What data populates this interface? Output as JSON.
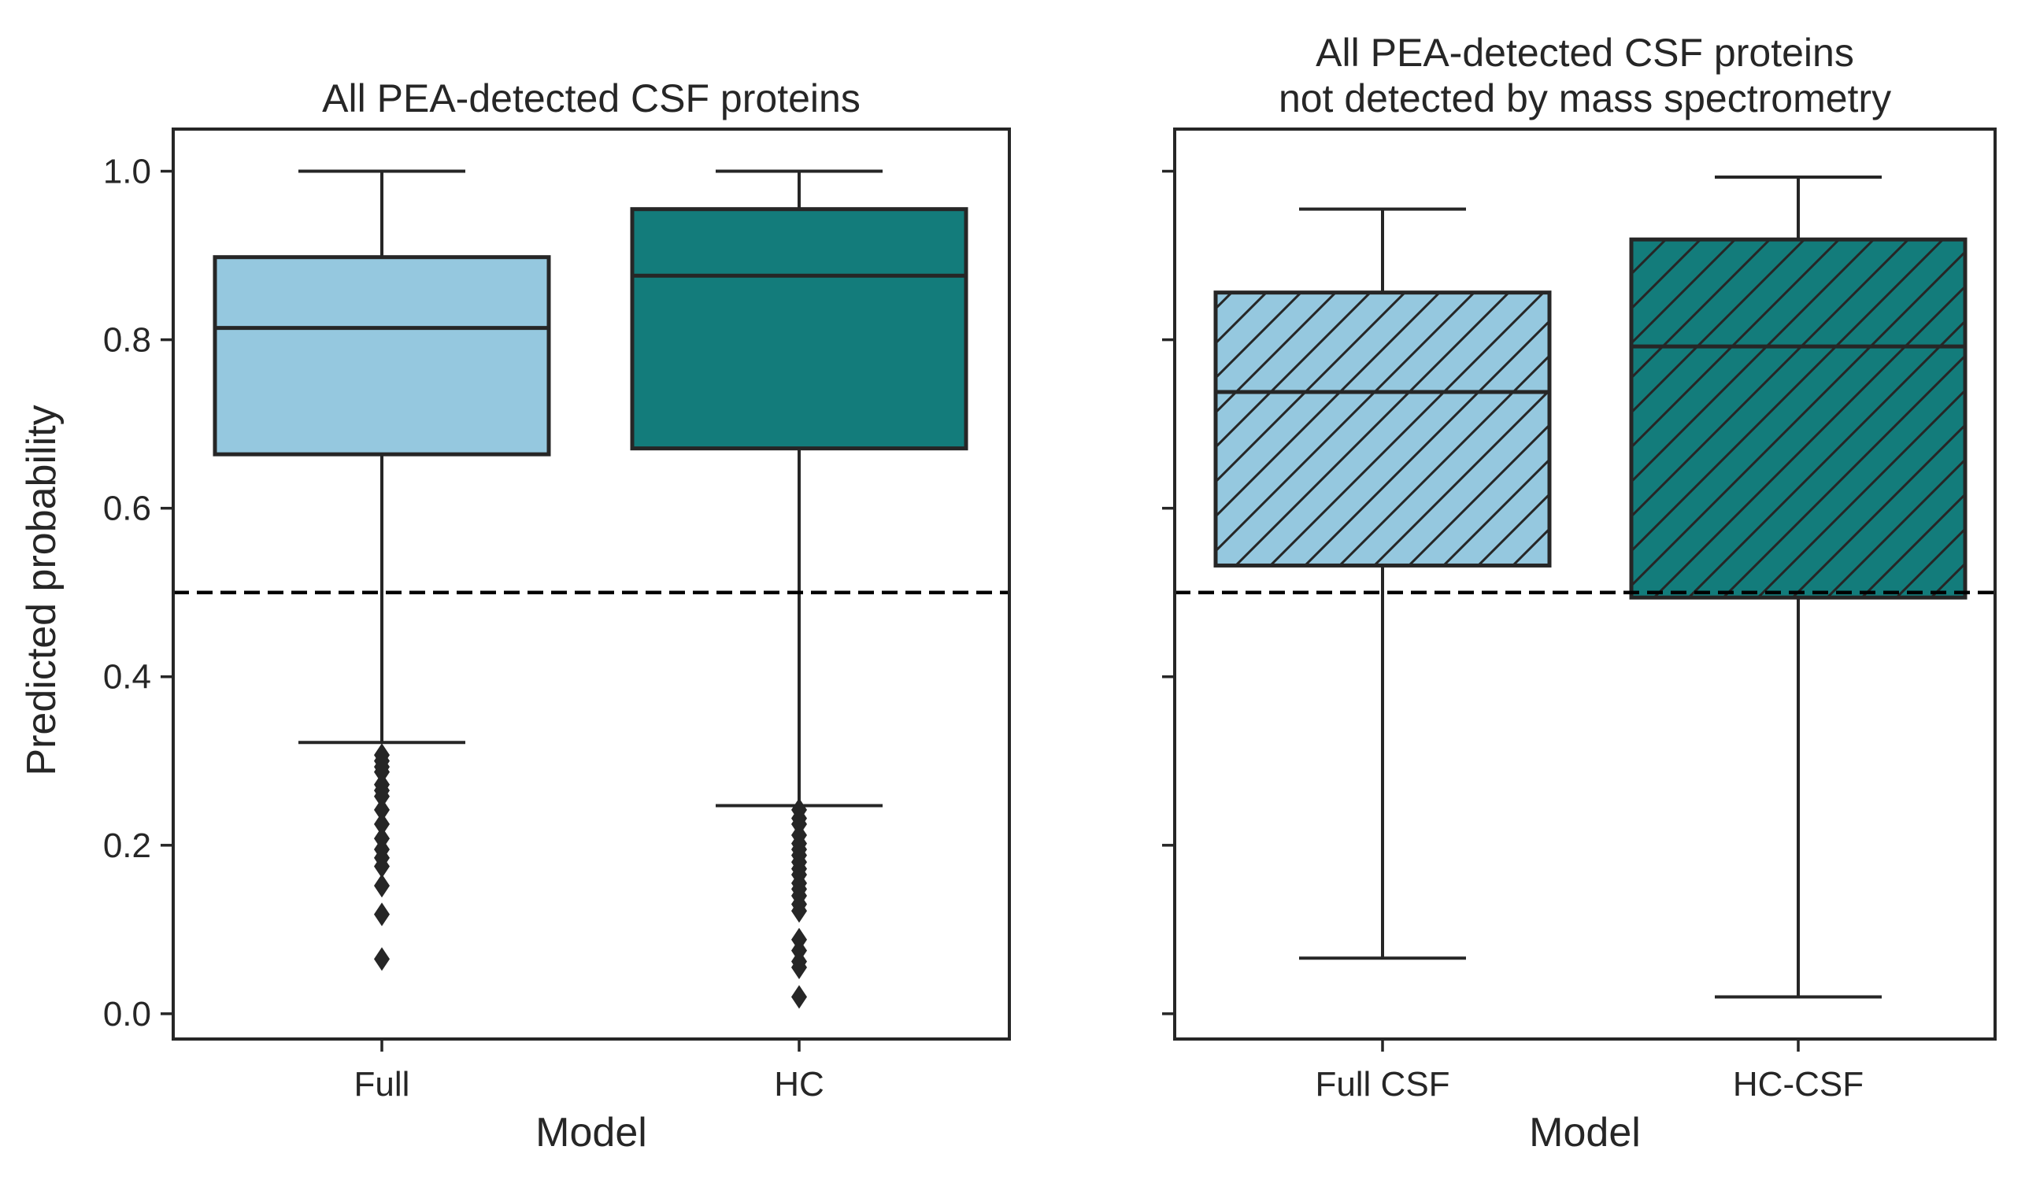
{
  "ylabel": "Predicted probability",
  "colors": {
    "light_blue": "#95c8df",
    "teal": "#137c7b",
    "edge": "#262626",
    "threshold": "#000000"
  },
  "chart_data": [
    {
      "type": "box",
      "title": "All PEA-detected CSF proteins",
      "title_lines": [
        "All PEA-detected CSF proteins"
      ],
      "xlabel": "Model",
      "ylabel": "Predicted probability",
      "ylim": [
        -0.03,
        1.05
      ],
      "yticks": [
        "0.0",
        "0.2",
        "0.4",
        "0.6",
        "0.8",
        "1.0"
      ],
      "threshold": 0.5,
      "categories": [
        "Full",
        "HC"
      ],
      "boxes": [
        {
          "name": "Full",
          "color": "#95c8df",
          "hatch": false,
          "whisker_low": 0.322,
          "q1": 0.664,
          "median": 0.814,
          "q3": 0.898,
          "whisker_high": 1.0,
          "outliers": [
            0.307,
            0.3,
            0.293,
            0.287,
            0.272,
            0.265,
            0.258,
            0.242,
            0.225,
            0.208,
            0.195,
            0.185,
            0.175,
            0.152,
            0.118,
            0.065
          ]
        },
        {
          "name": "HC",
          "color": "#137c7b",
          "hatch": false,
          "whisker_low": 0.247,
          "q1": 0.671,
          "median": 0.876,
          "q3": 0.955,
          "whisker_high": 1.0,
          "outliers": [
            0.242,
            0.232,
            0.225,
            0.212,
            0.202,
            0.195,
            0.188,
            0.18,
            0.172,
            0.165,
            0.155,
            0.148,
            0.14,
            0.13,
            0.122,
            0.088,
            0.075,
            0.062,
            0.055,
            0.02
          ]
        }
      ]
    },
    {
      "type": "box",
      "title": "All PEA-detected CSF proteins not detected by mass spectrometry",
      "title_lines": [
        "All PEA-detected CSF proteins",
        "not detected by mass spectrometry"
      ],
      "xlabel": "Model",
      "ylabel": "",
      "ylim": [
        -0.03,
        1.05
      ],
      "yticks": [
        "0.0",
        "0.2",
        "0.4",
        "0.6",
        "0.8",
        "1.0"
      ],
      "threshold": 0.5,
      "categories": [
        "Full CSF",
        "HC-CSF"
      ],
      "boxes": [
        {
          "name": "Full CSF",
          "color": "#95c8df",
          "hatch": true,
          "whisker_low": 0.066,
          "q1": 0.532,
          "median": 0.738,
          "q3": 0.856,
          "whisker_high": 0.955,
          "outliers": []
        },
        {
          "name": "HC-CSF",
          "color": "#137c7b",
          "hatch": true,
          "whisker_low": 0.02,
          "q1": 0.494,
          "median": 0.792,
          "q3": 0.919,
          "whisker_high": 0.993,
          "outliers": []
        }
      ]
    }
  ]
}
